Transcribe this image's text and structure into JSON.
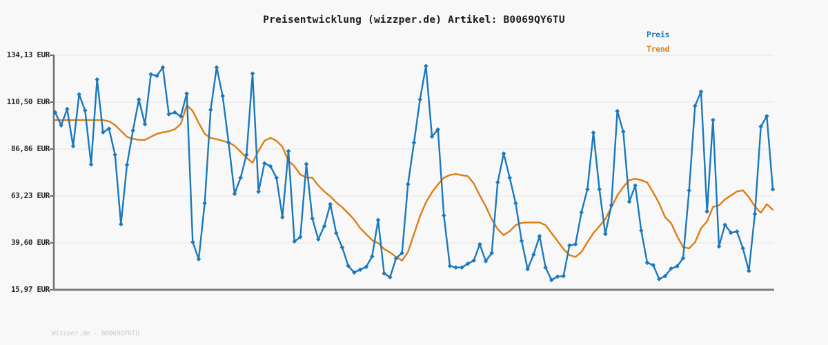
{
  "header": {
    "title": "Preisentwicklung (wizzper.de) Artikel: B0069QY6TU"
  },
  "legend": {
    "items": [
      {
        "label": "Preis",
        "color": "#1a78be"
      },
      {
        "label": "Trend",
        "color": "#dd7d14"
      }
    ]
  },
  "watermark": "Wizzper.de - B0069QY6TU",
  "y_axis": {
    "unit": "EUR",
    "tick_labels": [
      "134,13 EUR",
      "110,50 EUR",
      "86,86 EUR",
      "63,23 EUR",
      "39,60 EUR",
      "15,97 EUR"
    ],
    "tick_values": [
      134.13,
      110.5,
      86.86,
      63.23,
      39.6,
      15.97
    ]
  },
  "chart_data": {
    "type": "line",
    "title": "Preisentwicklung (wizzper.de) Artikel: B0069QY6TU",
    "xlabel": "",
    "ylabel": "",
    "x_note": "time axis, no tick labels shown in image",
    "ylim": [
      15.97,
      134.13
    ],
    "grid": true,
    "legend_position": "top-right",
    "unit": "EUR",
    "series": [
      {
        "name": "Preis",
        "color": "#1a78be",
        "marker": "diamond",
        "values": [
          105.3,
          98.8,
          107.0,
          88.3,
          114.4,
          106.3,
          79.1,
          121.9,
          95.3,
          97.1,
          84.0,
          49.0,
          78.9,
          96.2,
          111.8,
          99.4,
          124.5,
          123.7,
          128.0,
          104.4,
          105.3,
          103.4,
          114.8,
          40.0,
          31.4,
          59.6,
          106.6,
          128.0,
          113.6,
          90.1,
          64.3,
          72.4,
          84.0,
          124.9,
          65.4,
          79.7,
          78.2,
          72.4,
          52.5,
          85.8,
          40.3,
          42.6,
          79.3,
          51.9,
          41.4,
          48.0,
          59.1,
          44.5,
          37.3,
          28.0,
          24.7,
          26.1,
          27.5,
          32.8,
          51.1,
          24.2,
          22.3,
          31.8,
          34.5,
          69.2,
          90.1,
          111.8,
          128.7,
          93.2,
          96.7,
          53.4,
          28.0,
          27.2,
          27.2,
          29.1,
          30.7,
          38.9,
          30.4,
          34.5,
          70.1,
          84.6,
          72.4,
          59.6,
          40.6,
          26.4,
          33.7,
          43.0,
          27.2,
          20.9,
          22.6,
          22.9,
          38.3,
          38.9,
          55.0,
          66.6,
          95.1,
          66.6,
          44.1,
          58.5,
          106.0,
          95.6,
          60.4,
          68.5,
          45.8,
          29.6,
          28.4,
          21.4,
          22.9,
          26.7,
          27.8,
          31.9,
          66.0,
          108.6,
          115.8,
          55.4,
          101.5,
          37.8,
          48.7,
          44.7,
          45.3,
          36.9,
          25.5,
          54.1,
          98.2,
          103.4,
          66.6
        ]
      },
      {
        "name": "Trend",
        "color": "#dd7d14",
        "marker": "none",
        "values": [
          101.5,
          101.5,
          101.5,
          101.5,
          101.5,
          101.5,
          101.5,
          101.5,
          101.5,
          100.8,
          99.0,
          96.0,
          93.0,
          92.0,
          91.5,
          91.5,
          93.0,
          94.5,
          95.3,
          95.8,
          96.8,
          99.5,
          109.0,
          106.0,
          100.0,
          94.5,
          92.5,
          91.8,
          91.0,
          90.2,
          88.5,
          85.5,
          82.5,
          80.0,
          86.0,
          91.0,
          92.5,
          91.0,
          88.0,
          81.0,
          78.2,
          74.0,
          72.5,
          72.4,
          68.5,
          65.5,
          63.0,
          60.0,
          57.5,
          54.5,
          51.3,
          47.0,
          44.0,
          41.0,
          39.5,
          36.5,
          34.8,
          32.5,
          30.7,
          35.0,
          44.0,
          53.0,
          60.0,
          65.0,
          69.0,
          72.4,
          73.8,
          74.3,
          73.7,
          73.2,
          69.5,
          63.5,
          58.0,
          51.5,
          46.5,
          43.5,
          45.5,
          48.5,
          49.7,
          49.9,
          49.9,
          49.9,
          48.5,
          44.5,
          40.5,
          36.5,
          33.5,
          32.5,
          35.0,
          40.0,
          44.5,
          48.0,
          51.6,
          57.5,
          63.5,
          67.7,
          71.2,
          71.9,
          71.2,
          70.0,
          65.0,
          59.5,
          52.5,
          49.5,
          43.0,
          37.5,
          36.8,
          39.9,
          46.9,
          50.4,
          57.7,
          58.5,
          61.5,
          63.5,
          65.5,
          66.1,
          62.6,
          58.0,
          54.8,
          59.1,
          56.3
        ]
      }
    ]
  }
}
